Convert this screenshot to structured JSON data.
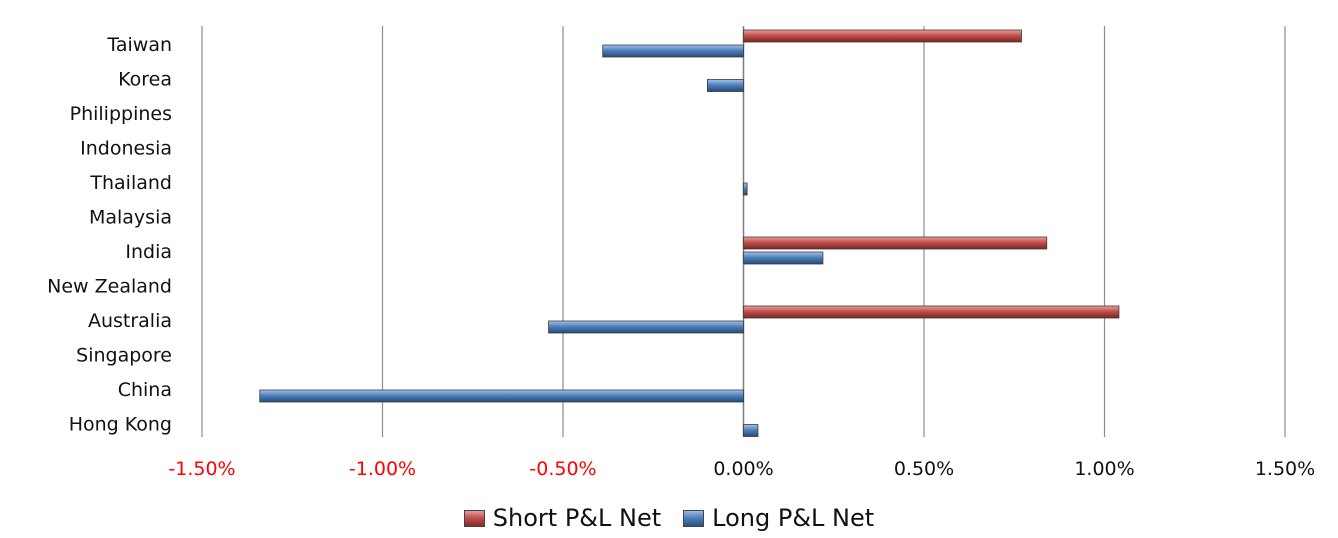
{
  "chart_data": {
    "type": "bar",
    "orientation": "horizontal",
    "title": "",
    "categories": [
      "Taiwan",
      "Korea",
      "Philippines",
      "Indonesia",
      "Thailand",
      "Malaysia",
      "India",
      "New Zealand",
      "Australia",
      "Singapore",
      "China",
      "Hong Kong"
    ],
    "series": [
      {
        "name": "Short P&L Net",
        "color": "#c0504d",
        "values": [
          0.77,
          0.0,
          0.0,
          0.0,
          0.0,
          0.0,
          0.84,
          0.0,
          1.04,
          0.0,
          0.0,
          0.0
        ]
      },
      {
        "name": "Long P&L Net",
        "color": "#4f81bd",
        "values": [
          -0.39,
          -0.1,
          0.0,
          0.0,
          0.01,
          0.0,
          0.22,
          0.0,
          -0.54,
          0.0,
          -1.34,
          0.04
        ]
      }
    ],
    "xlim": [
      -1.5,
      1.5
    ],
    "x_ticks": [
      {
        "value": -1.5,
        "label": "-1.50%"
      },
      {
        "value": -1.0,
        "label": "-1.00%"
      },
      {
        "value": -0.5,
        "label": "-0.50%"
      },
      {
        "value": 0.0,
        "label": "0.00%"
      },
      {
        "value": 0.5,
        "label": "0.50%"
      },
      {
        "value": 1.0,
        "label": "1.00%"
      },
      {
        "value": 1.5,
        "label": "1.50%"
      }
    ],
    "negative_tick_color": "#ff0000",
    "grid": true,
    "legend_position": "bottom"
  }
}
